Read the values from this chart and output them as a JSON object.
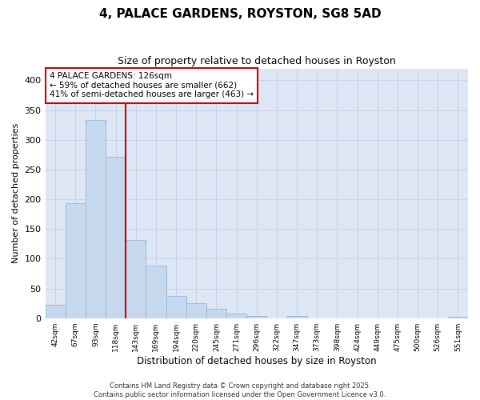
{
  "title": "4, PALACE GARDENS, ROYSTON, SG8 5AD",
  "subtitle": "Size of property relative to detached houses in Royston",
  "xlabel": "Distribution of detached houses by size in Royston",
  "ylabel": "Number of detached properties",
  "categories": [
    "42sqm",
    "67sqm",
    "93sqm",
    "118sqm",
    "143sqm",
    "169sqm",
    "194sqm",
    "220sqm",
    "245sqm",
    "271sqm",
    "296sqm",
    "322sqm",
    "347sqm",
    "373sqm",
    "398sqm",
    "424sqm",
    "449sqm",
    "475sqm",
    "500sqm",
    "526sqm",
    "551sqm"
  ],
  "values": [
    23,
    193,
    333,
    272,
    132,
    88,
    37,
    25,
    16,
    8,
    3,
    0,
    3,
    0,
    0,
    0,
    0,
    0,
    0,
    0,
    2
  ],
  "bar_color": "#c5d8ee",
  "bar_edge_color": "#9bbdd8",
  "vline_x": 3.5,
  "vline_color": "#cc0000",
  "annotation_text": "4 PALACE GARDENS: 126sqm\n← 59% of detached houses are smaller (662)\n41% of semi-detached houses are larger (463) →",
  "annotation_box_color": "#cc0000",
  "ylim": [
    0,
    420
  ],
  "yticks": [
    0,
    50,
    100,
    150,
    200,
    250,
    300,
    350,
    400
  ],
  "grid_color": "#c8d4e8",
  "bg_color": "#dde6f4",
  "footer": "Contains HM Land Registry data © Crown copyright and database right 2025.\nContains public sector information licensed under the Open Government Licence v3.0.",
  "title_fontsize": 11,
  "subtitle_fontsize": 9,
  "xlabel_fontsize": 8.5,
  "ylabel_fontsize": 8,
  "annotation_fontsize": 7.5,
  "footer_fontsize": 6
}
